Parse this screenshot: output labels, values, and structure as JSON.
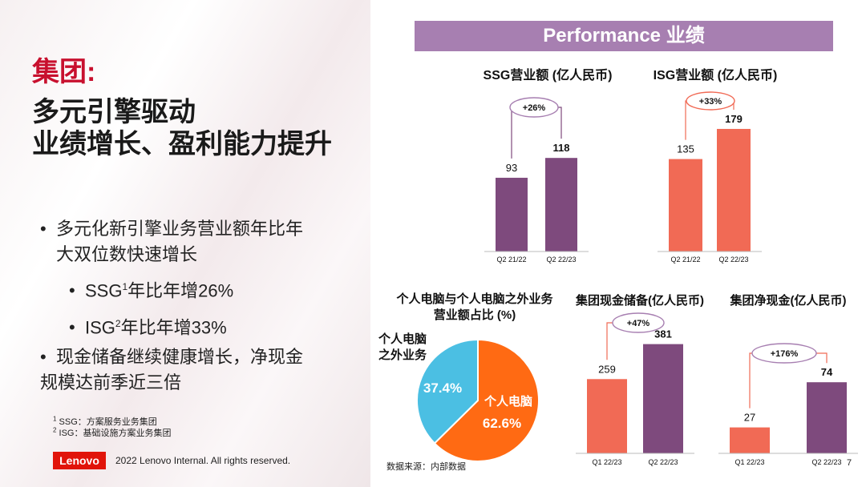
{
  "left": {
    "title_red": "集团:",
    "title_line1": "多元引擎驱动",
    "title_line2": "业绩增长、盈利能力提升",
    "bullets": [
      {
        "line1": "多元化新引擎业务营业额年比年",
        "line2": "大双位数快速增长"
      },
      {
        "pre": "SSG",
        "sup": "1",
        "post": "年比年增26%"
      },
      {
        "pre": "ISG",
        "sup": "2",
        "post": "年比年增33%"
      },
      {
        "line1": "现金储备继续健康增长，净现金",
        "line2": "规模达前季近三倍"
      }
    ],
    "footnotes": [
      {
        "sup": "1",
        "text": "SSG：方案服务业务集团"
      },
      {
        "sup": "2",
        "text": "ISG：基础设施方案业务集团"
      }
    ],
    "logo_text": "Lenovo",
    "copyright": "2022 Lenovo Internal. All rights reserved."
  },
  "header": {
    "title": "Performance 业绩"
  },
  "page_number": "7",
  "source_note": "数据来源：内部数据",
  "colors": {
    "purple": "#7e4a7d",
    "coral": "#f16a55",
    "orange": "#ff6a13",
    "sky": "#4bbfe3",
    "header": "#a77fb1"
  },
  "chart_data": [
    {
      "id": "ssg",
      "type": "bar",
      "title": "SSG营业额 (亿人民币)",
      "categories": [
        "Q2 21/22",
        "Q2 22/23"
      ],
      "values": [
        93,
        118
      ],
      "value_labels": [
        "93",
        "118"
      ],
      "growth_label": "+26%",
      "colors": [
        "#7e4a7d",
        "#7e4a7d"
      ]
    },
    {
      "id": "isg",
      "type": "bar",
      "title": "ISG营业额 (亿人民币)",
      "categories": [
        "Q2 21/22",
        "Q2 22/23"
      ],
      "values": [
        135,
        179
      ],
      "value_labels": [
        "135",
        "179"
      ],
      "growth_label": "+33%",
      "colors": [
        "#f16a55",
        "#f16a55"
      ]
    },
    {
      "id": "share",
      "type": "pie",
      "title_line1": "个人电脑与个人电脑之外业务",
      "title_line2": "营业额占比 (%)",
      "slices": [
        {
          "name": "个人电脑",
          "value": 62.6,
          "label": "62.6%",
          "color": "#ff6a13"
        },
        {
          "name": "个人电脑之外业务",
          "value": 37.4,
          "label": "37.4%",
          "color": "#4bbfe3"
        }
      ],
      "outer_label_line1": "个人电脑",
      "outer_label_line2": "之外业务"
    },
    {
      "id": "cash",
      "type": "bar",
      "title": "集团现金储备(亿人民币)",
      "categories": [
        "Q1 22/23",
        "Q2 22/23"
      ],
      "values": [
        259,
        381
      ],
      "value_labels": [
        "259",
        "381"
      ],
      "growth_label": "+47%",
      "colors": [
        "#f16a55",
        "#7e4a7d"
      ]
    },
    {
      "id": "netcash",
      "type": "bar",
      "title": "集团净现金(亿人民币)",
      "categories": [
        "Q1 22/23",
        "Q2 22/23"
      ],
      "values": [
        27,
        74
      ],
      "value_labels": [
        "27",
        "74"
      ],
      "growth_label": "+176%",
      "colors": [
        "#f16a55",
        "#7e4a7d"
      ]
    }
  ]
}
